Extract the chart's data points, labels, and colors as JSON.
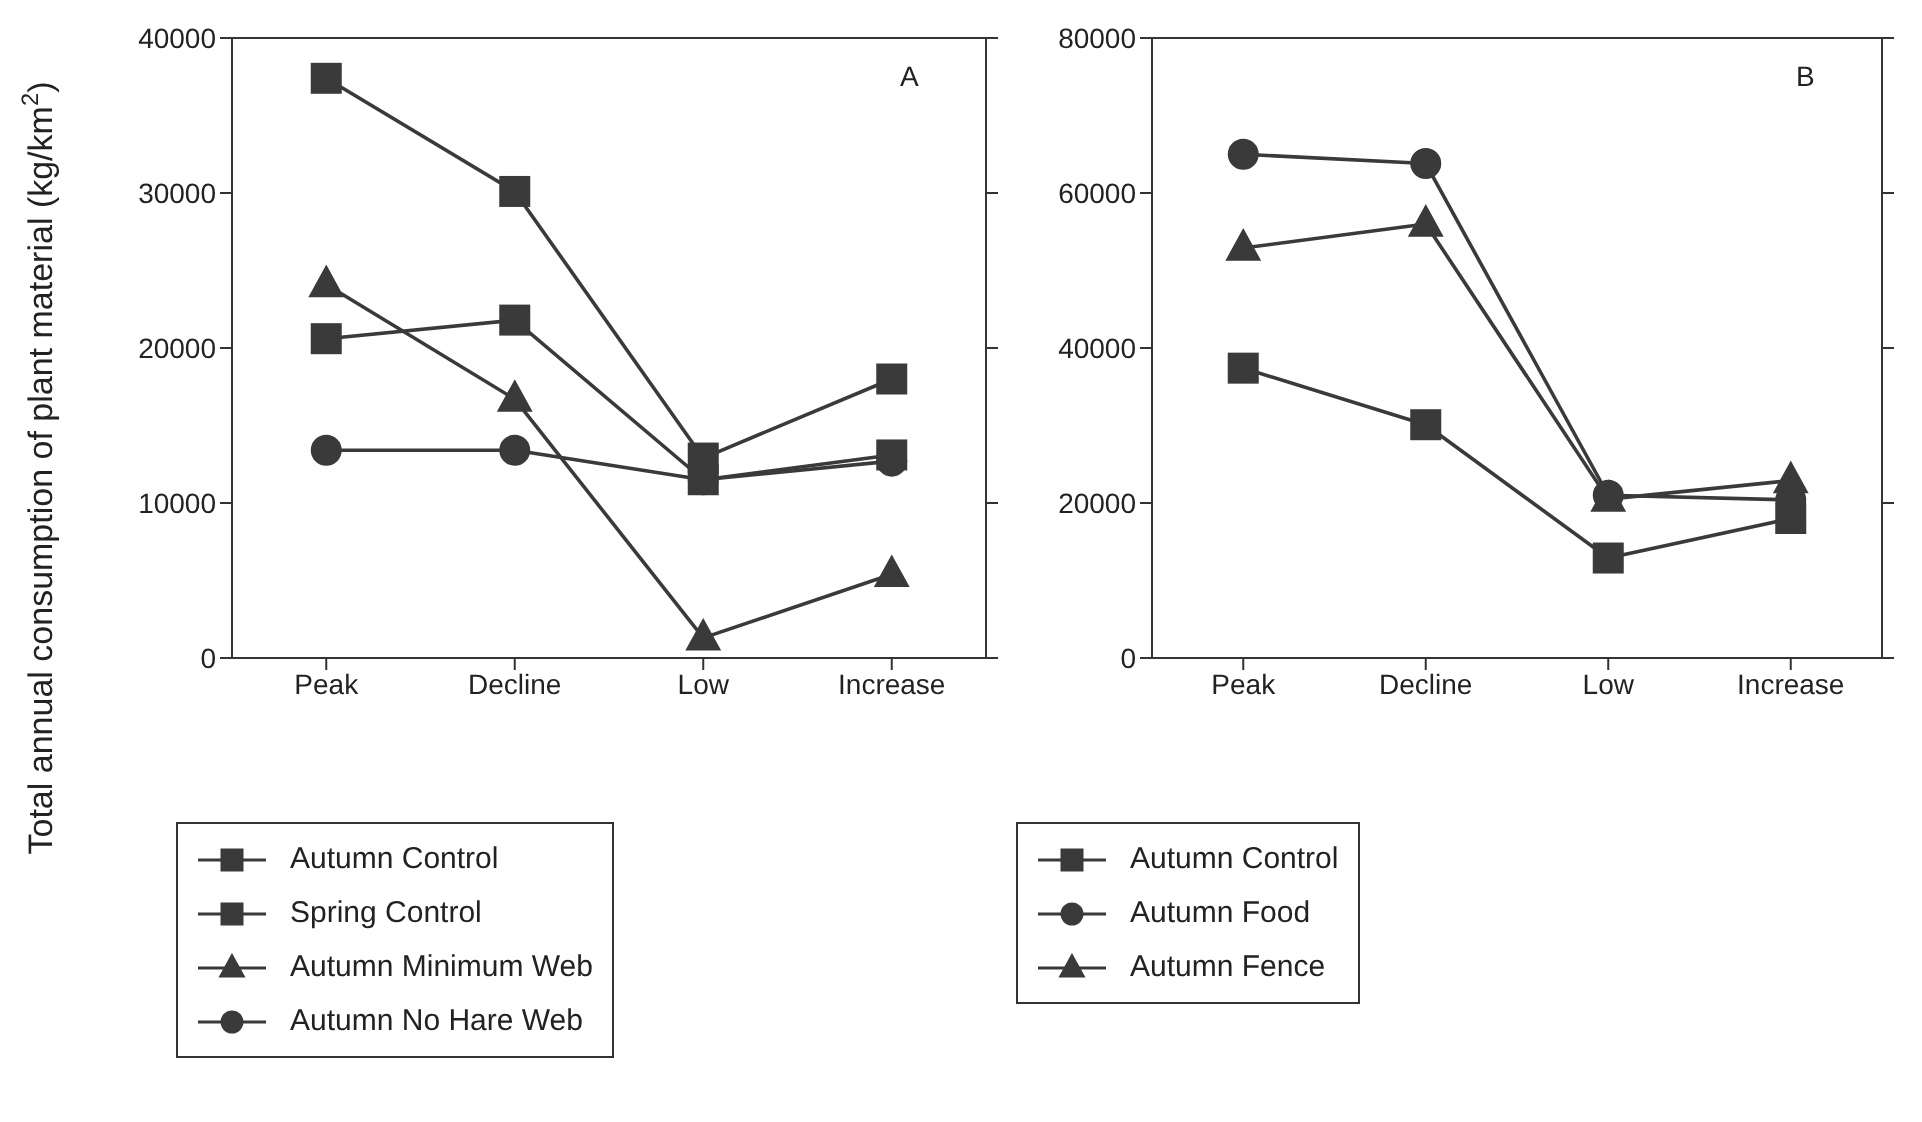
{
  "chart_data": [
    {
      "type": "line",
      "categories": [
        "Peak",
        "Decline",
        "Low",
        "Increase"
      ],
      "ylabel": "Total annual consumption of plant material (kg/km$^{2}$)",
      "ylim": [
        0,
        40000
      ],
      "yticks": [
        0,
        10000,
        20000,
        30000,
        40000
      ],
      "legend": "bottom",
      "annotations": [
        "A"
      ],
      "series": [
        {
          "name": "Autumn Control",
          "color": "#3a3a3a",
          "marker": "square",
          "values": [
            37400,
            30100,
            12900,
            18000
          ]
        },
        {
          "name": "Spring Control",
          "color": "#3a3a3a",
          "marker": "square",
          "values": [
            20600,
            21800,
            11500,
            13100
          ]
        },
        {
          "name": "Autumn Minimum Web",
          "color": "#3a3a3a",
          "marker": "triangle",
          "values": [
            24100,
            16700,
            1300,
            5400
          ]
        },
        {
          "name": "Autumn No Hare Web",
          "color": "#3a3a3a",
          "marker": "circle",
          "values": [
            13400,
            13400,
            11500,
            12700
          ]
        }
      ]
    },
    {
      "type": "line",
      "categories": [
        "Peak",
        "Decline",
        "Low",
        "Increase"
      ],
      "ylim": [
        0,
        80000
      ],
      "yticks": [
        0,
        20000,
        40000,
        60000,
        80000
      ],
      "legend": "bottom",
      "annotations": [
        "B"
      ],
      "series": [
        {
          "name": "Autumn Control",
          "color": "#3a3a3a",
          "marker": "square",
          "values": [
            37400,
            30100,
            12900,
            18000
          ]
        },
        {
          "name": "Autumn Food",
          "color": "#3a3a3a",
          "marker": "circle",
          "values": [
            65000,
            63800,
            21000,
            20400
          ]
        },
        {
          "name": "Autumn Fence",
          "color": "#3a3a3a",
          "marker": "triangle",
          "values": [
            52900,
            56000,
            20500,
            22900
          ]
        }
      ]
    }
  ]
}
